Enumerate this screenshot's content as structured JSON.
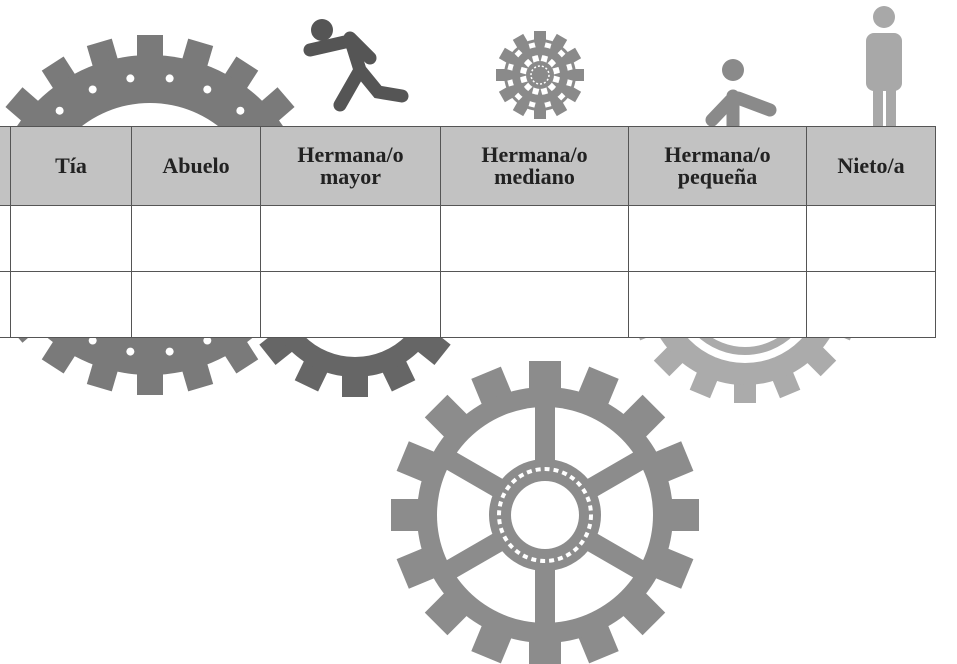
{
  "table": {
    "header": [
      [
        "Tía"
      ],
      [
        "Abuelo"
      ],
      [
        "Hermana/o",
        "mayor"
      ],
      [
        "Hermana/o",
        "mediano"
      ],
      [
        "Hermana/o",
        "pequeña"
      ],
      [
        "Nieto/a"
      ]
    ]
  }
}
